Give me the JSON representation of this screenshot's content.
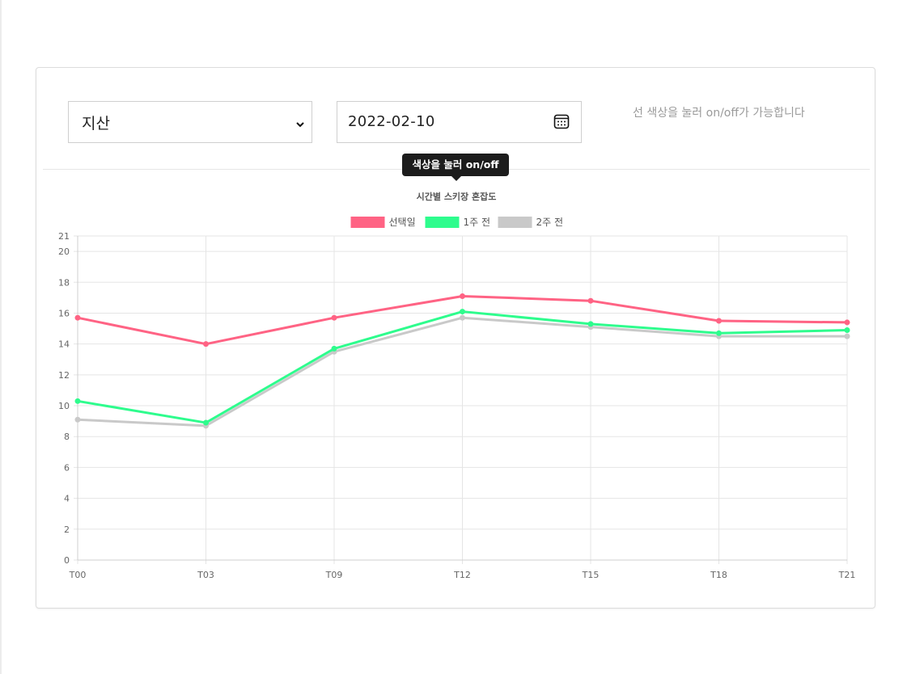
{
  "controls": {
    "region_select": {
      "value": "지산",
      "icon": "chevron-down-icon"
    },
    "date_input": {
      "value": "2022-02-10",
      "icon": "calendar-icon"
    },
    "hint_text": "선 색상을 눌러 on/off가 가능합니다",
    "tooltip_text": "색상을 눌러 on/off"
  },
  "chart_data": {
    "type": "line",
    "title": "시간별 스키장 혼잡도",
    "categories": [
      "T00",
      "T03",
      "T09",
      "T12",
      "T15",
      "T18",
      "T21"
    ],
    "series": [
      {
        "name": "선택일",
        "color": "#ff6384",
        "values": [
          15.7,
          14.0,
          15.7,
          17.1,
          16.8,
          15.5,
          15.4
        ]
      },
      {
        "name": "1주 전",
        "color": "#2efc8d",
        "values": [
          10.3,
          8.9,
          13.7,
          16.1,
          15.3,
          14.7,
          14.9
        ]
      },
      {
        "name": "2주 전",
        "color": "#c9c9c9",
        "values": [
          9.1,
          8.7,
          13.5,
          15.7,
          15.1,
          14.5,
          14.5
        ]
      }
    ],
    "ylim": [
      0,
      21
    ],
    "yticks": [
      "0",
      "2",
      "4",
      "6",
      "8",
      "10",
      "12",
      "14",
      "16",
      "18",
      "20",
      "21"
    ],
    "grid": true,
    "legend_position": "top"
  }
}
